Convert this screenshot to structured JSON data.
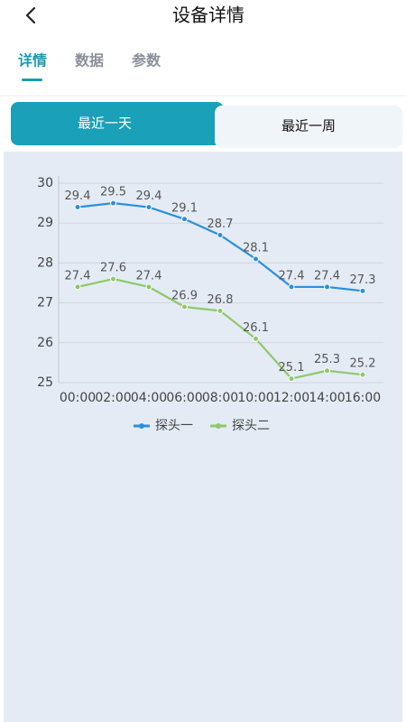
{
  "header": {
    "title": "设备详情"
  },
  "tabs": [
    "详情",
    "数据",
    "参数"
  ],
  "buttons": [
    "最近一天",
    "最近一周"
  ],
  "chart_data": {
    "type": "line",
    "categories": [
      "00:00",
      "02:00",
      "04:00",
      "06:00",
      "08:00",
      "10:00",
      "12:00",
      "14:00",
      "16:00"
    ],
    "series": [
      {
        "name": "探头一",
        "color": "#2b8fdc",
        "values": [
          29.4,
          29.5,
          29.4,
          29.1,
          28.7,
          28.1,
          27.4,
          27.4,
          27.3
        ]
      },
      {
        "name": "探头二",
        "color": "#8dc86a",
        "values": [
          27.4,
          27.6,
          27.4,
          26.9,
          26.8,
          26.1,
          25.1,
          25.3,
          25.2
        ]
      }
    ],
    "ylim": [
      25,
      30
    ],
    "yticks": [
      25,
      26,
      27,
      28,
      29,
      30
    ],
    "grid": true,
    "legend": "bottom"
  }
}
